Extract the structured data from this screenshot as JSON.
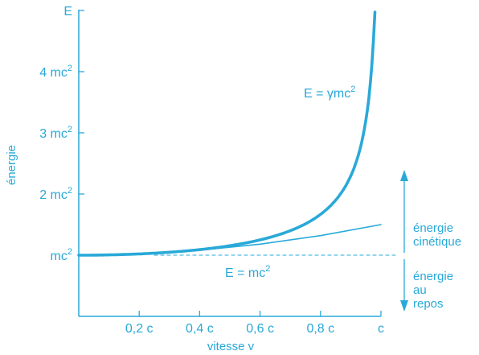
{
  "chart_data": {
    "type": "line",
    "title": "",
    "xlabel": "vitesse v",
    "ylabel": "énergie",
    "x_tick_labels": [
      "0,2 c",
      "0,4 c",
      "0,6 c",
      "0,8 c",
      "c"
    ],
    "x_tick_values": [
      0.2,
      0.4,
      0.6,
      0.8,
      1.0
    ],
    "y_tick_labels": [
      "mc",
      "2 mc",
      "3 mc",
      "4 mc",
      "E"
    ],
    "y_tick_values": [
      1,
      2,
      3,
      4,
      5
    ],
    "y_tick_superscripts": [
      "2",
      "2",
      "2",
      "2",
      ""
    ],
    "xlim": [
      0,
      1.0
    ],
    "ylim": [
      0,
      5
    ],
    "grid": false,
    "series": [
      {
        "name": "E = γmc²",
        "x": [
          0,
          0.1,
          0.2,
          0.3,
          0.4,
          0.5,
          0.6,
          0.7,
          0.8,
          0.85,
          0.9,
          0.93,
          0.95,
          0.97,
          0.98,
          0.99
        ],
        "y": [
          1.0,
          1.005,
          1.021,
          1.048,
          1.091,
          1.155,
          1.25,
          1.4,
          1.667,
          1.898,
          2.294,
          2.72,
          3.203,
          4.113,
          5.0,
          5.0
        ]
      },
      {
        "name": "kinetic approximation",
        "x": [
          0,
          0.2,
          0.4,
          0.6,
          0.8,
          1.0
        ],
        "y": [
          1.0,
          1.02,
          1.08,
          1.18,
          1.32,
          1.5
        ]
      },
      {
        "name": "E = mc²",
        "x": [
          0.25,
          1.05
        ],
        "y": [
          1.0,
          1.0
        ],
        "style": "dashed"
      }
    ],
    "annotations": {
      "gamma_label": "E = γmc",
      "gamma_sup": "2",
      "rest_label": "E = mc",
      "rest_sup": "2",
      "kinetic_label_line1": "énergie",
      "kinetic_label_line2": "cinétique",
      "rest_energy_line1": "énergie",
      "rest_energy_line2": "au",
      "rest_energy_line3": "repos"
    },
    "colors": {
      "main": "#29a9d8"
    }
  }
}
